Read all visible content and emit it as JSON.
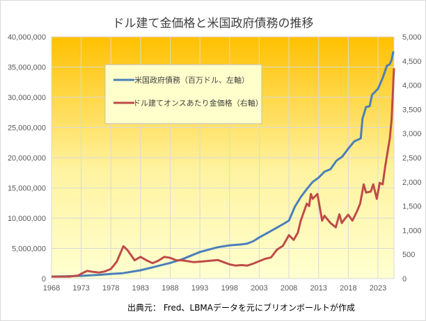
{
  "chart_data": {
    "type": "line",
    "title": "ドル建て金価格と米国政府債務の推移",
    "source_note": "出典元： Fred、LBMAデータを元にブリオンボールトが作成",
    "x_ticks": [
      "1968",
      "1973",
      "1978",
      "1983",
      "1988",
      "1993",
      "1998",
      "2003",
      "2008",
      "2013",
      "2018",
      "2023"
    ],
    "xlim": [
      1968,
      2025.7
    ],
    "y_left": {
      "ylim": [
        0,
        40000000
      ],
      "ticks": [
        "0",
        "5,000,000",
        "10,000,000",
        "15,000,000",
        "20,000,000",
        "25,000,000",
        "30,000,000",
        "35,000,000",
        "40,000,000"
      ]
    },
    "y_right": {
      "ylim": [
        0,
        5000
      ],
      "ticks": [
        "0",
        "500",
        "1,000",
        "1,500",
        "2,000",
        "2,500",
        "3,000",
        "3,500",
        "4,000",
        "4,500",
        "5,000"
      ]
    },
    "grid": true,
    "legend_position": "upper-left-inside",
    "background_gradient": [
      "#FFC000",
      "#FFFFD0"
    ],
    "series": [
      {
        "name": "米国政府債務（百万ドル、左軸）",
        "axis": "left",
        "color": "#4A7EBB",
        "points": [
          [
            1968,
            350000
          ],
          [
            1970,
            380000
          ],
          [
            1973,
            460000
          ],
          [
            1976,
            620000
          ],
          [
            1978,
            780000
          ],
          [
            1980,
            900000
          ],
          [
            1983,
            1380000
          ],
          [
            1986,
            2100000
          ],
          [
            1988,
            2600000
          ],
          [
            1990,
            3200000
          ],
          [
            1993,
            4400000
          ],
          [
            1996,
            5200000
          ],
          [
            1998,
            5500000
          ],
          [
            2000,
            5650000
          ],
          [
            2001,
            5800000
          ],
          [
            2002,
            6200000
          ],
          [
            2003,
            6800000
          ],
          [
            2005,
            7900000
          ],
          [
            2007,
            9000000
          ],
          [
            2008,
            9600000
          ],
          [
            2009,
            11900000
          ],
          [
            2010,
            13500000
          ],
          [
            2011,
            14800000
          ],
          [
            2012,
            16000000
          ],
          [
            2013,
            16700000
          ],
          [
            2014,
            17700000
          ],
          [
            2015,
            18100000
          ],
          [
            2016,
            19500000
          ],
          [
            2017,
            20200000
          ],
          [
            2018,
            21500000
          ],
          [
            2019,
            22700000
          ],
          [
            2020.1,
            23200000
          ],
          [
            2020.4,
            26500000
          ],
          [
            2021,
            28400000
          ],
          [
            2021.6,
            28500000
          ],
          [
            2022,
            30400000
          ],
          [
            2023,
            31400000
          ],
          [
            2023.8,
            33200000
          ],
          [
            2024.5,
            35200000
          ],
          [
            2025,
            35500000
          ],
          [
            2025.3,
            36200000
          ],
          [
            2025.6,
            37600000
          ]
        ]
      },
      {
        "name": "ドル建てオンスあたり金価格（右軸）",
        "axis": "right",
        "color": "#BE4B48",
        "points": [
          [
            1968,
            40
          ],
          [
            1971,
            42
          ],
          [
            1972.5,
            65
          ],
          [
            1973,
            100
          ],
          [
            1974,
            160
          ],
          [
            1975,
            140
          ],
          [
            1976,
            125
          ],
          [
            1977,
            150
          ],
          [
            1978,
            200
          ],
          [
            1979,
            350
          ],
          [
            1980.1,
            670
          ],
          [
            1980.8,
            590
          ],
          [
            1982,
            380
          ],
          [
            1983,
            450
          ],
          [
            1984,
            380
          ],
          [
            1985,
            320
          ],
          [
            1986,
            370
          ],
          [
            1987,
            450
          ],
          [
            1988,
            430
          ],
          [
            1989,
            380
          ],
          [
            1990,
            380
          ],
          [
            1992,
            340
          ],
          [
            1993,
            350
          ],
          [
            1996,
            385
          ],
          [
            1997,
            340
          ],
          [
            1998,
            295
          ],
          [
            1999,
            270
          ],
          [
            2000,
            280
          ],
          [
            2001,
            270
          ],
          [
            2002,
            310
          ],
          [
            2003,
            360
          ],
          [
            2004,
            410
          ],
          [
            2005,
            440
          ],
          [
            2006,
            600
          ],
          [
            2007,
            680
          ],
          [
            2008,
            900
          ],
          [
            2008.8,
            800
          ],
          [
            2009.5,
            950
          ],
          [
            2010,
            1200
          ],
          [
            2011,
            1550
          ],
          [
            2011.4,
            1500
          ],
          [
            2011.7,
            1750
          ],
          [
            2012,
            1650
          ],
          [
            2012.8,
            1750
          ],
          [
            2013.3,
            1400
          ],
          [
            2013.6,
            1200
          ],
          [
            2014,
            1300
          ],
          [
            2015,
            1150
          ],
          [
            2015.9,
            1060
          ],
          [
            2016.5,
            1330
          ],
          [
            2016.9,
            1150
          ],
          [
            2017.5,
            1250
          ],
          [
            2018,
            1320
          ],
          [
            2018.7,
            1200
          ],
          [
            2019.5,
            1400
          ],
          [
            2020,
            1550
          ],
          [
            2020.6,
            1950
          ],
          [
            2021,
            1780
          ],
          [
            2021.8,
            1800
          ],
          [
            2022.2,
            1950
          ],
          [
            2022.8,
            1650
          ],
          [
            2023.3,
            1980
          ],
          [
            2023.8,
            1950
          ],
          [
            2024.2,
            2300
          ],
          [
            2024.6,
            2600
          ],
          [
            2025,
            2900
          ],
          [
            2025.3,
            3300
          ],
          [
            2025.7,
            4350
          ]
        ]
      }
    ]
  }
}
